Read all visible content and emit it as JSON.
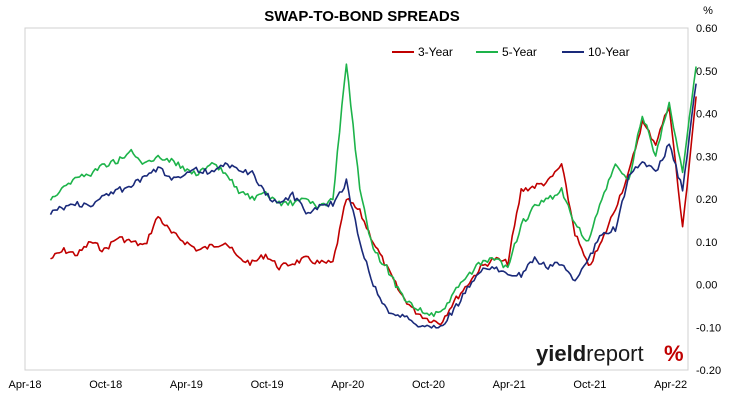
{
  "chart_data": {
    "type": "line",
    "title": "SWAP-TO-BOND SPREADS",
    "ylabel": "%",
    "ylim": [
      -0.2,
      0.6
    ],
    "y_ticks": [
      "0.60",
      "0.50",
      "0.40",
      "0.30",
      "0.20",
      "0.10",
      "0.00",
      "-0.10",
      "-0.20"
    ],
    "x_ticks": [
      "Apr-18",
      "Oct-18",
      "Apr-19",
      "Oct-19",
      "Apr-20",
      "Oct-20",
      "Apr-21",
      "Oct-21",
      "Apr-22"
    ],
    "x_range": [
      "Apr-18",
      "May-22"
    ],
    "grid": false,
    "legend_position": "top-right",
    "x": [
      "May-18",
      "Jun-18",
      "Jul-18",
      "Aug-18",
      "Sep-18",
      "Oct-18",
      "Nov-18",
      "Dec-18",
      "Jan-19",
      "Feb-19",
      "Mar-19",
      "Apr-19",
      "May-19",
      "Jun-19",
      "Jul-19",
      "Aug-19",
      "Sep-19",
      "Oct-19",
      "Nov-19",
      "Dec-19",
      "Jan-20",
      "Feb-20",
      "Mar-20",
      "Apr-20",
      "May-20",
      "Jun-20",
      "Jul-20",
      "Aug-20",
      "Sep-20",
      "Oct-20",
      "Nov-20",
      "Dec-20",
      "Jan-21",
      "Feb-21",
      "Mar-21",
      "Apr-21",
      "May-21",
      "Jun-21",
      "Jul-21",
      "Aug-21",
      "Sep-21",
      "Oct-21",
      "Nov-21",
      "Dec-21",
      "Jan-22",
      "Feb-22",
      "Mar-22",
      "Apr-22",
      "May-22"
    ],
    "series": [
      {
        "name": "3-Year",
        "color": "#c00000",
        "values": [
          0.06,
          0.08,
          0.07,
          0.1,
          0.08,
          0.11,
          0.1,
          0.09,
          0.16,
          0.12,
          0.1,
          0.08,
          0.09,
          0.1,
          0.06,
          0.05,
          0.07,
          0.04,
          0.05,
          0.06,
          0.05,
          0.05,
          0.2,
          0.17,
          0.1,
          0.04,
          -0.02,
          -0.06,
          -0.08,
          -0.09,
          -0.04,
          0.0,
          0.04,
          0.06,
          0.05,
          0.22,
          0.23,
          0.24,
          0.28,
          0.12,
          0.04,
          0.1,
          0.18,
          0.26,
          0.38,
          0.33,
          0.42,
          0.13,
          0.44
        ]
      },
      {
        "name": "5-Year",
        "color": "#1db34a",
        "values": [
          0.2,
          0.23,
          0.25,
          0.26,
          0.28,
          0.29,
          0.31,
          0.28,
          0.3,
          0.29,
          0.27,
          0.26,
          0.28,
          0.26,
          0.22,
          0.2,
          0.21,
          0.19,
          0.19,
          0.2,
          0.18,
          0.2,
          0.52,
          0.22,
          0.08,
          0.04,
          -0.02,
          -0.05,
          -0.07,
          -0.07,
          -0.02,
          0.02,
          0.05,
          0.06,
          0.04,
          0.14,
          0.18,
          0.2,
          0.22,
          0.14,
          0.1,
          0.2,
          0.28,
          0.24,
          0.4,
          0.3,
          0.43,
          0.26,
          0.51
        ]
      },
      {
        "name": "10-Year",
        "color": "#1a2a7a",
        "values": [
          0.17,
          0.18,
          0.19,
          0.18,
          0.21,
          0.22,
          0.23,
          0.25,
          0.27,
          0.25,
          0.26,
          0.27,
          0.26,
          0.28,
          0.27,
          0.26,
          0.21,
          0.19,
          0.21,
          0.17,
          0.18,
          0.19,
          0.24,
          0.1,
          0.0,
          -0.06,
          -0.07,
          -0.09,
          -0.1,
          -0.1,
          -0.06,
          -0.01,
          0.03,
          0.04,
          0.03,
          0.02,
          0.06,
          0.04,
          0.05,
          0.01,
          0.06,
          0.12,
          0.13,
          0.25,
          0.29,
          0.26,
          0.33,
          0.22,
          0.47
        ]
      }
    ]
  },
  "watermark": {
    "part1": "yield",
    "part2": "report",
    "symbol": "%"
  }
}
